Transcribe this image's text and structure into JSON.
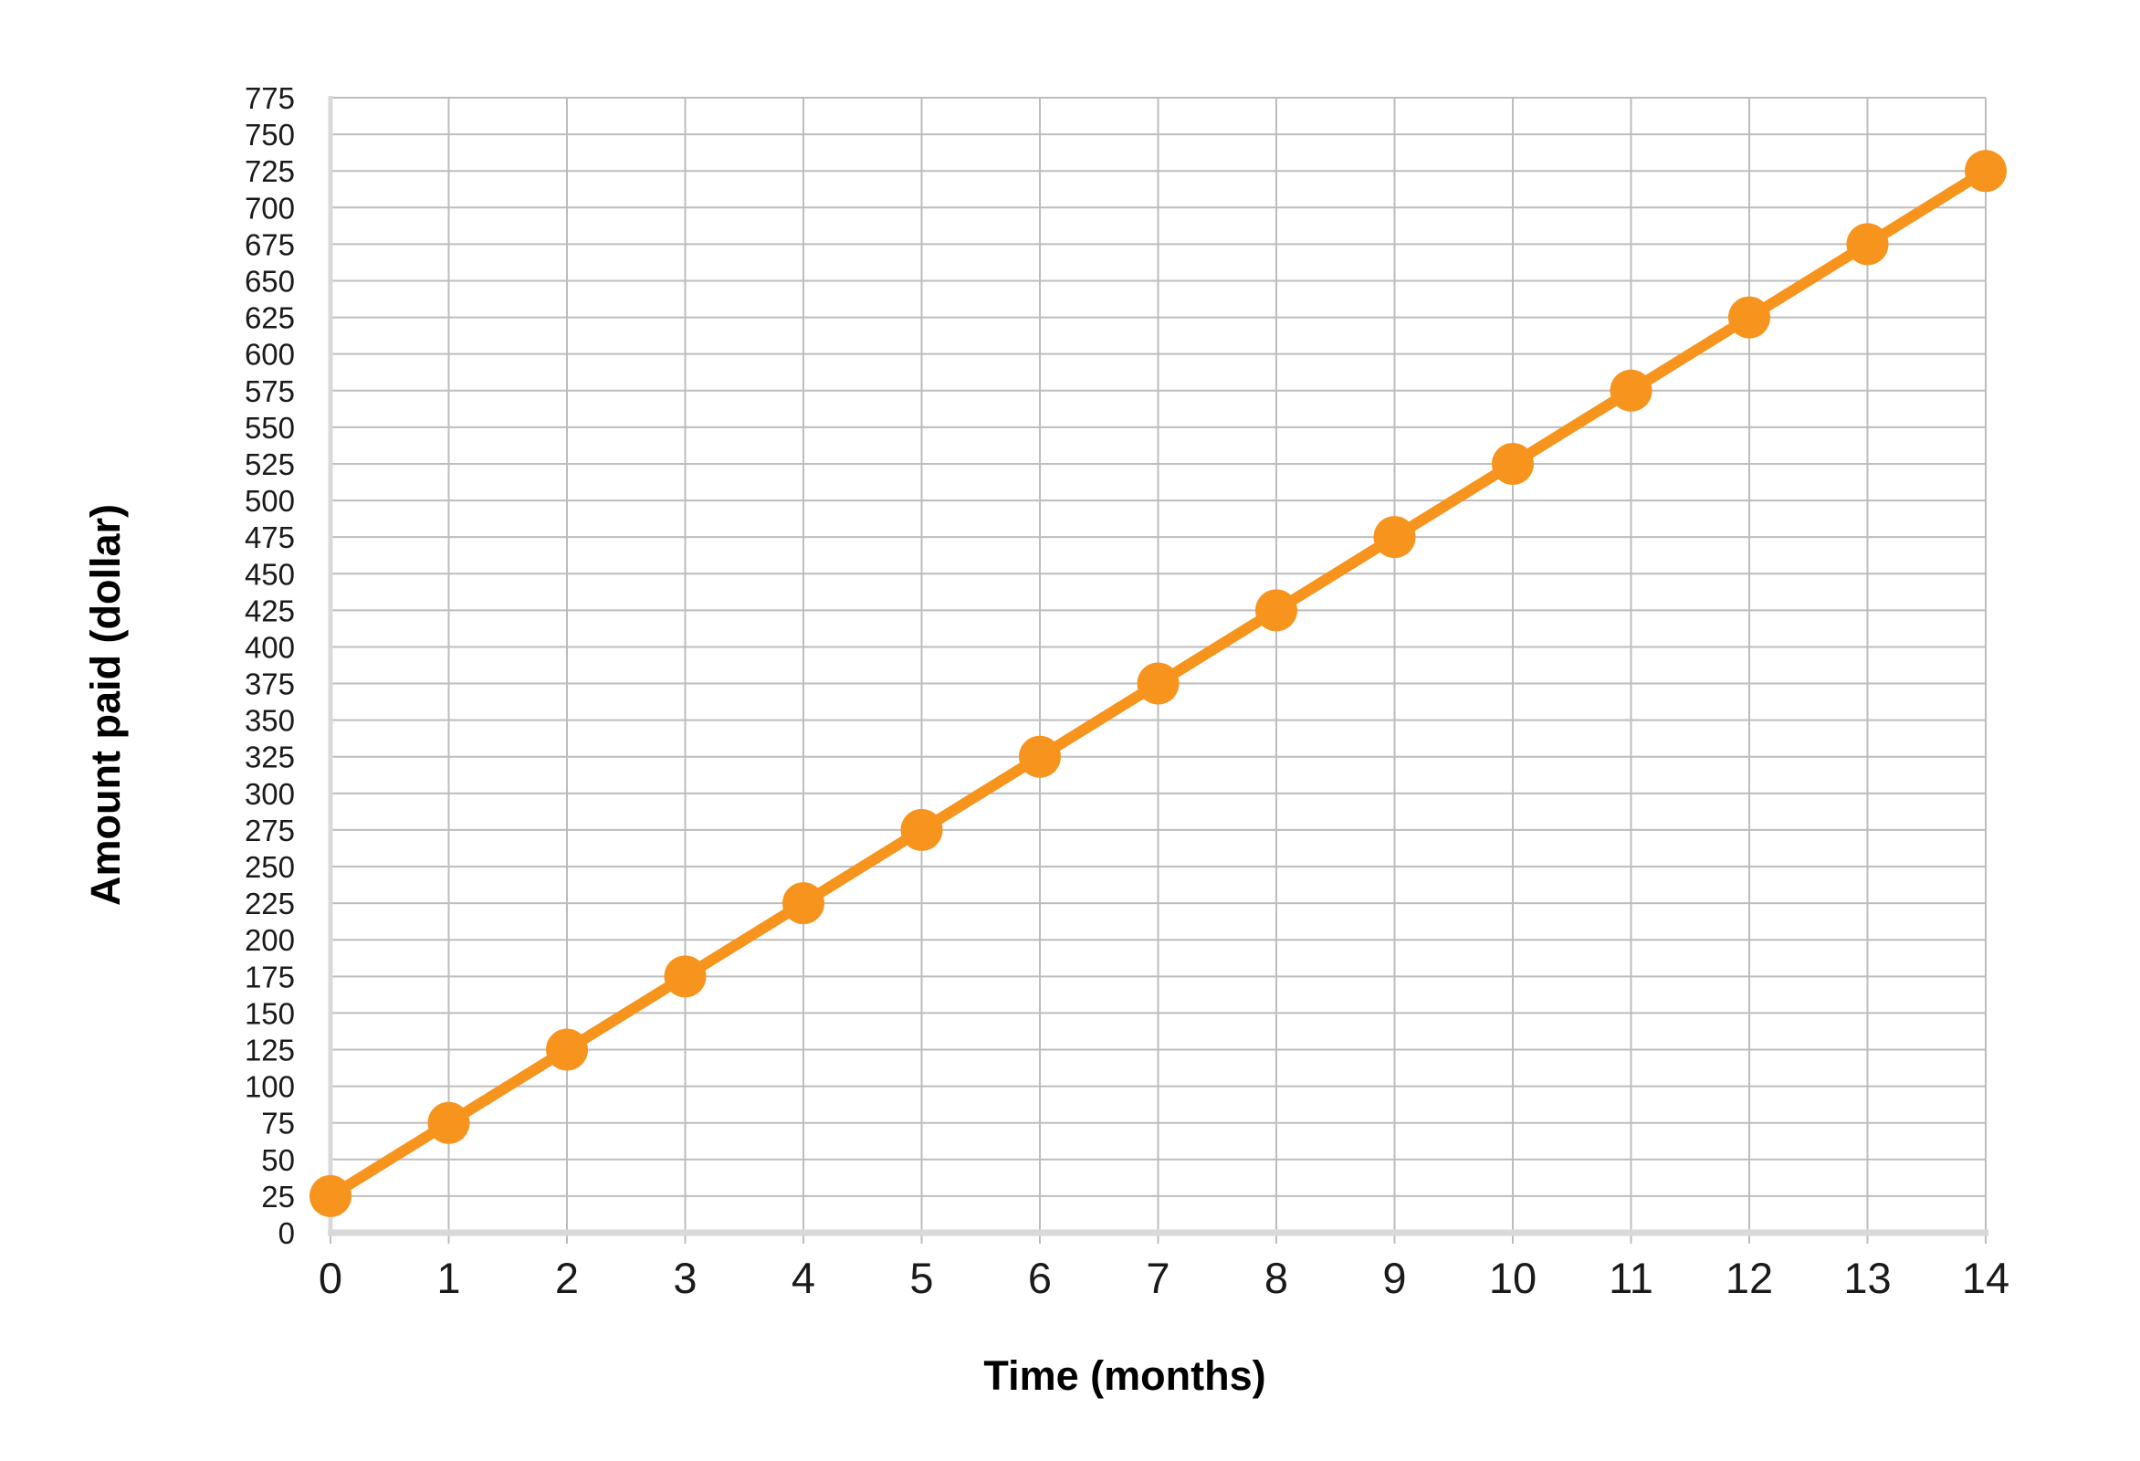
{
  "chart_data": {
    "type": "line",
    "xlabel": "Time (months)",
    "ylabel": "Amount paid (dollar)",
    "x": [
      0,
      1,
      2,
      3,
      4,
      5,
      6,
      7,
      8,
      9,
      10,
      11,
      12,
      13,
      14
    ],
    "series": [
      {
        "values": [
          25,
          75,
          125,
          175,
          225,
          275,
          325,
          375,
          425,
          475,
          525,
          575,
          625,
          675,
          725
        ]
      }
    ],
    "xlim": [
      0,
      14
    ],
    "ylim": [
      0,
      775
    ],
    "x_ticks": [
      "0",
      "1",
      "2",
      "3",
      "4",
      "5",
      "6",
      "7",
      "8",
      "9",
      "10",
      "11",
      "12",
      "13",
      "14"
    ],
    "y_ticks": [
      "0",
      "25",
      "50",
      "75",
      "100",
      "125",
      "150",
      "175",
      "200",
      "225",
      "250",
      "275",
      "300",
      "325",
      "350",
      "375",
      "400",
      "425",
      "450",
      "475",
      "500",
      "525",
      "550",
      "575",
      "600",
      "625",
      "650",
      "675",
      "700",
      "725",
      "750",
      "775"
    ],
    "grid": true,
    "colors": {
      "line": "#F7941D",
      "marker": "#F7941D",
      "grid": "#BDBDBD",
      "axis": "#D9D9D9"
    }
  }
}
